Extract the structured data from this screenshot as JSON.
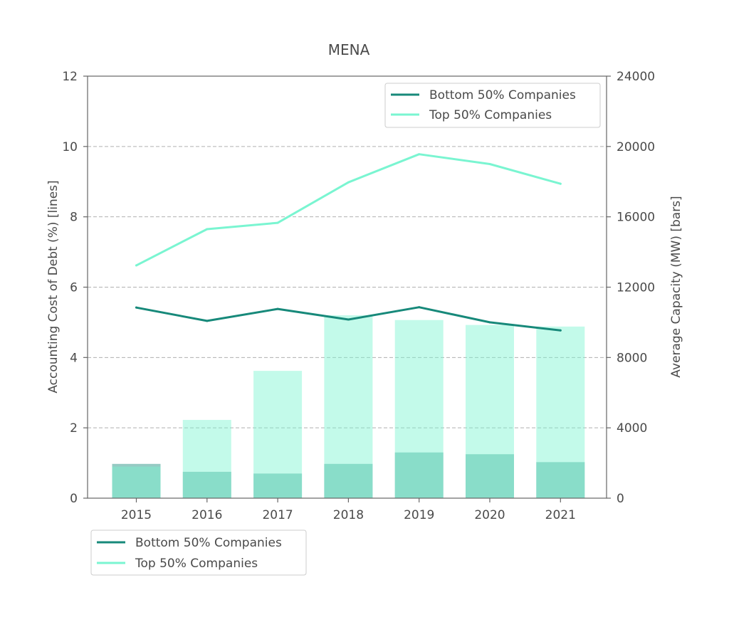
{
  "chart_data": {
    "type": "bar+line",
    "title": "MENA",
    "categories": [
      "2015",
      "2016",
      "2017",
      "2018",
      "2019",
      "2020",
      "2021"
    ],
    "y_left": {
      "label": "Accounting Cost of Debt (%)  [lines]",
      "lim": [
        0,
        12
      ],
      "ticks": [
        "0",
        "2",
        "4",
        "6",
        "8",
        "10",
        "12"
      ]
    },
    "y_right": {
      "label": "Average Capacity (MW) [bars]",
      "lim": [
        0,
        24000
      ],
      "ticks": [
        "0",
        "4000",
        "8000",
        "12000",
        "16000",
        "20000",
        "24000"
      ]
    },
    "grid": "horizontal-dashed",
    "line_series": [
      {
        "name": "Bottom 50% Companies",
        "color": "#17897a",
        "values": [
          5.42,
          5.04,
          5.38,
          5.08,
          5.43,
          5.0,
          4.77
        ]
      },
      {
        "name": "Top 50% Companies",
        "color": "#7af5d1",
        "values": [
          6.62,
          7.65,
          7.83,
          8.98,
          9.78,
          9.5,
          8.94
        ]
      }
    ],
    "bar_series": [
      {
        "name": "Bottom 50% Companies",
        "color": "#17897a",
        "values": [
          1950,
          1500,
          1400,
          1950,
          2600,
          2500,
          2050
        ]
      },
      {
        "name": "Top 50% Companies",
        "color": "#7af5d1",
        "values": [
          1800,
          4450,
          7240,
          10400,
          10130,
          9850,
          9760
        ]
      }
    ],
    "legend_inside": {
      "placement": "upper-right",
      "entries": [
        "Bottom 50% Companies",
        "Top 50% Companies"
      ]
    },
    "legend_below": {
      "placement": "below-left",
      "entries": [
        "Bottom 50% Companies",
        "Top 50% Companies"
      ]
    }
  }
}
